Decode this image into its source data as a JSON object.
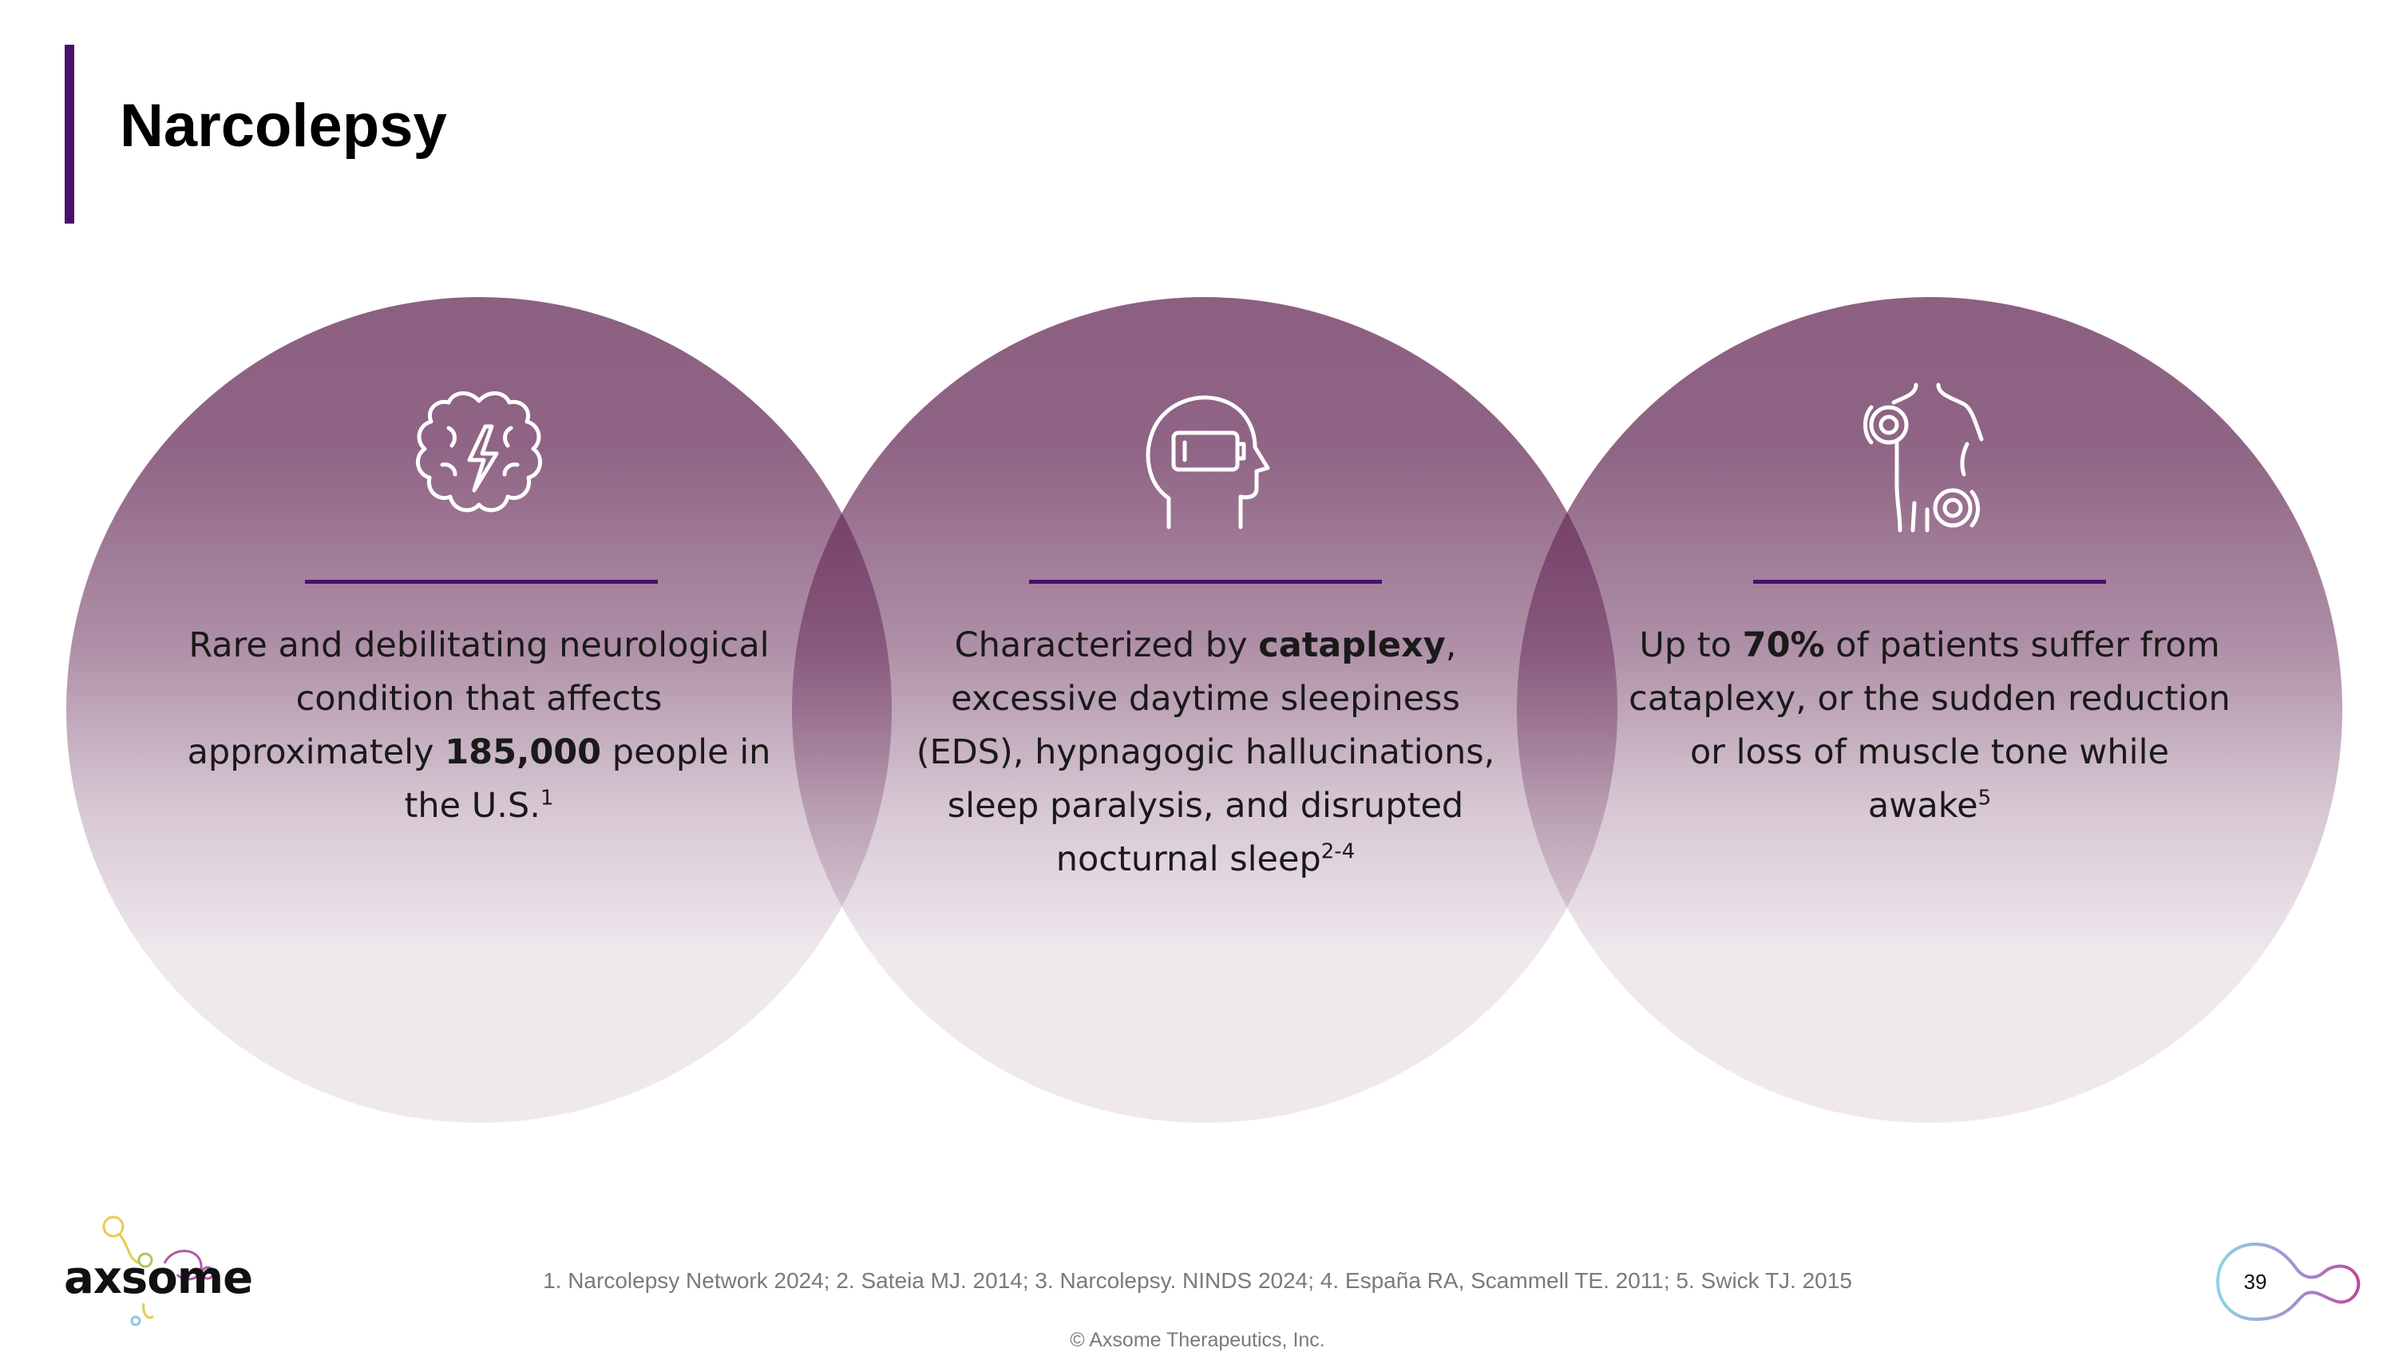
{
  "slide": {
    "title": "Narcolepsy",
    "page_number": "39",
    "colors": {
      "accent": "#4b0f6e",
      "circle": "#8b5f85"
    }
  },
  "panels": [
    {
      "icon": "brain-lightning-icon",
      "pre": "Rare and debilitating neurological condition that affects approximately ",
      "bold": "185,000",
      "post": " people in the U.S.",
      "sup": "1"
    },
    {
      "icon": "head-low-battery-icon",
      "pre": "Characterized by ",
      "bold": "cataplexy",
      "post": ", excessive daytime sleepiness (EDS), hypnagogic hallucinations, sleep paralysis, and disrupted nocturnal sleep",
      "sup": "2-4"
    },
    {
      "icon": "body-muscle-pain-icon",
      "pre": "Up to ",
      "bold": "70%",
      "post": " of patients suffer from cataplexy, or the sudden reduction or loss of muscle tone while awake",
      "sup": "5"
    }
  ],
  "footer": {
    "references": "1. Narcolepsy Network 2024; 2. Sateia MJ. 2014; 3. Narcolepsy. NINDS 2024; 4. España RA, Scammell TE. 2011; 5. Swick TJ. 2015",
    "copyright": "© Axsome Therapeutics, Inc.",
    "logo_text": "axsome"
  }
}
